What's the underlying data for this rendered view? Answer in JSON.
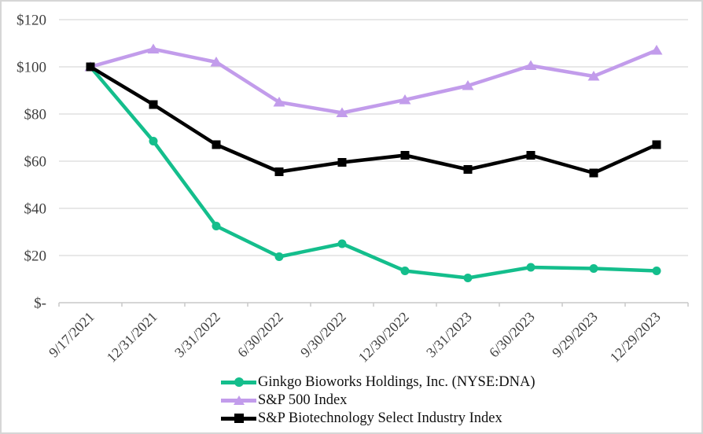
{
  "chart_data": {
    "type": "line",
    "title": "",
    "xlabel": "",
    "ylabel": "",
    "x": [
      "9/17/2021",
      "12/31/2021",
      "3/31/2022",
      "6/30/2022",
      "9/30/2022",
      "12/30/2022",
      "3/31/2023",
      "6/30/2023",
      "9/29/2023",
      "12/29/2023"
    ],
    "series": [
      {
        "name": "Ginkgo Bioworks Holdings, Inc. (NYSE:DNA)",
        "color": "#14BE8C",
        "marker": "circle",
        "values": [
          100,
          68.5,
          32.5,
          19.5,
          25,
          13.5,
          10.5,
          15,
          14.5,
          13.5
        ]
      },
      {
        "name": "S&P 500 Index",
        "color": "#C29CEB",
        "marker": "triangle",
        "values": [
          100,
          107.5,
          102,
          85,
          80.5,
          86,
          92,
          100.5,
          96,
          107
        ]
      },
      {
        "name": "S&P Biotechnology Select Industry Index",
        "color": "#000000",
        "marker": "square",
        "values": [
          100,
          84,
          67,
          55.5,
          59.5,
          62.5,
          56.5,
          62.5,
          55,
          67
        ]
      }
    ],
    "y_ticks": [
      {
        "label": "$120",
        "value": 120
      },
      {
        "label": "$100",
        "value": 100
      },
      {
        "label": "$80",
        "value": 80
      },
      {
        "label": "$60",
        "value": 60
      },
      {
        "label": "$40",
        "value": 40
      },
      {
        "label": "$20",
        "value": 20
      },
      {
        "label": "$-",
        "value": 0
      }
    ],
    "ylim": [
      0,
      120
    ],
    "grid": true,
    "legend_position": "bottom-center"
  },
  "styles": {
    "background": "#FFFFFF",
    "border_color": "#D6D6D6",
    "grid_color": "#D9D9D9",
    "axis_color": "#C9C9C9",
    "tick_label_color": "#404040",
    "legend_text_color": "#111111"
  }
}
